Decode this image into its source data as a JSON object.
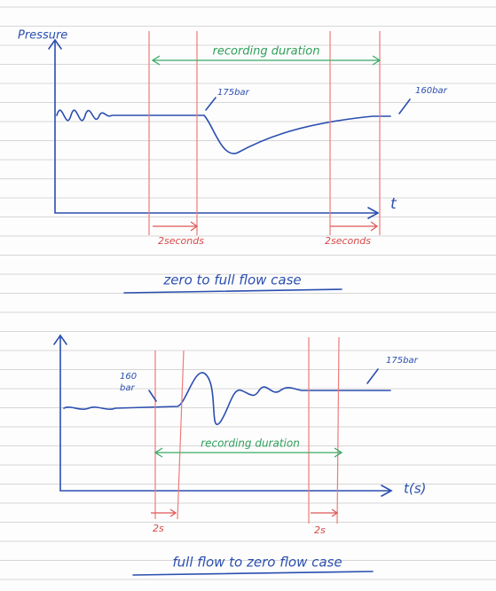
{
  "diagram1": {
    "y_label": "Pressure",
    "duration_label": "recording duration",
    "dip_label": "175bar",
    "end_label": "160bar",
    "x_label": "t",
    "interval_left": "2seconds",
    "interval_right": "2seconds",
    "caption": "zero to full flow case"
  },
  "diagram2": {
    "start_label": [
      "160",
      "bar"
    ],
    "end_label": "175bar",
    "duration_label": "recording duration",
    "x_label": "t(s)",
    "interval_left": "2s",
    "interval_right": "2s",
    "caption": "full flow to zero flow case"
  }
}
